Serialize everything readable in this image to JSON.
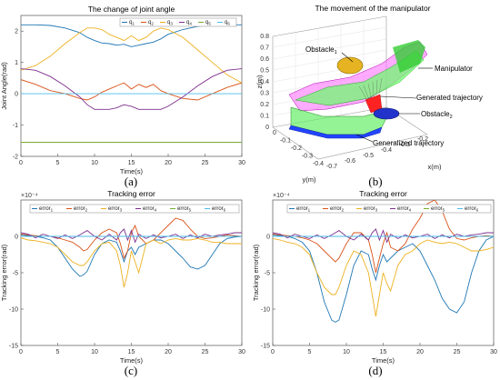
{
  "panels": {
    "a": {
      "caption": "(a)"
    },
    "b": {
      "caption": "(b)"
    },
    "c": {
      "caption": "(c)"
    },
    "d": {
      "caption": "(d)"
    }
  },
  "manipulator3d": {
    "title": "The movement of the manipulator",
    "zlabel": "z(m)",
    "ylabel": "y(m)",
    "xlabel": "x(m)",
    "z_ticks": [
      "0",
      "0.1",
      "0.2",
      "0.3",
      "0.4",
      "0.5",
      "0.6",
      "0.7",
      "0.8"
    ],
    "y_ticks": [
      "0",
      "-0.1",
      "-0.2",
      "-0.3",
      "-0.4"
    ],
    "x_ticks": [
      "-0.7",
      "-0.6",
      "-0.5",
      "-0.4",
      "-0.3",
      "-0.2"
    ],
    "annotations": {
      "obstacle1": "Obstacle",
      "obstacle1_sub": "1",
      "manipulator": "Manipulator",
      "generated": "Generated trajectory",
      "obstacle2": "Obstacle",
      "obstacle2_sub": "2",
      "generalized": "Generalized trajectory"
    },
    "colors": {
      "manipulator_top": "#ff44ff",
      "manipulator_side": "#66ff66",
      "green": "#33dd33",
      "blue": "#2244ff",
      "obstacle1": "#e0b020",
      "obstacle2": "#2233cc"
    }
  },
  "chart_data": [
    {
      "id": "a",
      "type": "line",
      "title": "The change of joint angle",
      "xlabel": "Time(s)",
      "ylabel": "Joint Angle(rad)",
      "xlim": [
        0,
        30
      ],
      "ylim": [
        -2,
        2.5
      ],
      "xticks": [
        0,
        5,
        10,
        15,
        20,
        25,
        30
      ],
      "yticks": [
        -2,
        -1,
        0,
        1,
        2
      ],
      "legend": {
        "placement": "top-right",
        "orientation": "horizontal"
      },
      "x": [
        0,
        2,
        4,
        6,
        8,
        9,
        10,
        11,
        12,
        13,
        14,
        15,
        16,
        17,
        18,
        19,
        20,
        22,
        24,
        26,
        28,
        30
      ],
      "series": [
        {
          "name": "q",
          "sub": "1",
          "color": "#1f77b4",
          "values": [
            2.2,
            2.2,
            2.18,
            2.1,
            1.95,
            1.8,
            1.7,
            1.62,
            1.6,
            1.55,
            1.58,
            1.5,
            1.55,
            1.6,
            1.65,
            1.75,
            1.9,
            2.05,
            2.15,
            2.2,
            2.2,
            2.2
          ]
        },
        {
          "name": "q",
          "sub": "2",
          "color": "#d95319",
          "values": [
            0.45,
            0.3,
            0.1,
            0.0,
            -0.15,
            -0.2,
            -0.1,
            0.05,
            0.15,
            0.25,
            0.35,
            0.15,
            0.3,
            0.2,
            0.3,
            0.1,
            0.0,
            -0.15,
            -0.2,
            0.0,
            0.2,
            0.35
          ]
        },
        {
          "name": "q",
          "sub": "3",
          "color": "#edb120",
          "values": [
            0.75,
            0.9,
            1.2,
            1.6,
            1.95,
            2.1,
            2.1,
            2.05,
            1.9,
            1.8,
            1.7,
            1.85,
            1.7,
            1.8,
            2.0,
            2.1,
            2.05,
            1.8,
            1.4,
            1.0,
            0.6,
            0.35
          ]
        },
        {
          "name": "q",
          "sub": "4",
          "color": "#7e2f8e",
          "values": [
            0.8,
            0.75,
            0.55,
            0.25,
            -0.1,
            -0.35,
            -0.5,
            -0.5,
            -0.5,
            -0.45,
            -0.35,
            -0.4,
            -0.5,
            -0.5,
            -0.5,
            -0.5,
            -0.4,
            -0.1,
            0.25,
            0.55,
            0.75,
            0.8
          ]
        },
        {
          "name": "q",
          "sub": "5",
          "color": "#77ac30",
          "values": [
            -1.55,
            -1.55,
            -1.55,
            -1.55,
            -1.55,
            -1.55,
            -1.55,
            -1.55,
            -1.55,
            -1.55,
            -1.55,
            -1.55,
            -1.55,
            -1.55,
            -1.55,
            -1.55,
            -1.55,
            -1.55,
            -1.55,
            -1.55,
            -1.55,
            -1.55
          ]
        },
        {
          "name": "q",
          "sub": "6",
          "color": "#4dbeee",
          "values": [
            0.0,
            0.0,
            0.0,
            0.0,
            0.0,
            0.0,
            0.0,
            0.0,
            0.0,
            0.0,
            0.0,
            0.0,
            0.0,
            0.0,
            0.0,
            0.0,
            0.0,
            0.0,
            0.0,
            0.0,
            0.0,
            0.0
          ]
        }
      ]
    },
    {
      "id": "c",
      "type": "line",
      "title": "Tracking error",
      "exponent": "×10⁻⁴",
      "xlabel": "Time(s)",
      "ylabel": "Tracking error(rad)",
      "xlim": [
        0,
        30
      ],
      "ylim": [
        -15,
        5
      ],
      "xticks": [
        0,
        5,
        10,
        15,
        20,
        25,
        30
      ],
      "yticks": [
        -15,
        -10,
        -5,
        0
      ],
      "legend": {
        "placement": "top",
        "orientation": "horizontal"
      },
      "x": [
        0,
        1,
        2,
        3,
        4,
        5,
        6,
        7,
        8,
        8.5,
        9,
        10,
        11,
        12,
        13,
        13.5,
        14,
        14.5,
        15,
        15.5,
        16,
        17,
        18,
        19,
        20,
        21,
        22,
        23,
        24,
        25,
        26,
        27,
        28,
        29,
        30
      ],
      "series": [
        {
          "name": "error",
          "sub": "1",
          "color": "#1f77b4",
          "values": [
            0.2,
            0.1,
            0,
            -0.2,
            -0.5,
            -1.5,
            -3,
            -4.5,
            -5.5,
            -5.3,
            -4.8,
            -2.5,
            -1,
            -0.5,
            -0.8,
            -2,
            -3.5,
            -2,
            -1.5,
            -2.5,
            -1.5,
            -1,
            -0.5,
            -0.5,
            -1,
            -2,
            -3,
            -4.2,
            -4.5,
            -4,
            -2.5,
            -1,
            -0.3,
            -0.1,
            0
          ]
        },
        {
          "name": "error",
          "sub": "2",
          "color": "#d95319",
          "values": [
            0.3,
            0.2,
            0.1,
            0,
            0,
            -0.2,
            -0.5,
            -0.8,
            -1.5,
            -2,
            -1.8,
            -0.5,
            0.5,
            1,
            0.5,
            -1,
            -3,
            -2,
            0.5,
            1.5,
            0,
            -1,
            -0.5,
            0.5,
            1.5,
            2.5,
            2.2,
            1,
            0,
            -0.3,
            -0.2,
            0,
            0.2,
            0.1,
            0
          ]
        },
        {
          "name": "error",
          "sub": "3",
          "color": "#edb120",
          "values": [
            -0.2,
            -0.5,
            -0.6,
            -0.8,
            -1,
            -1.5,
            -2.5,
            -3.5,
            -4,
            -4,
            -3.5,
            -2,
            -1,
            -0.8,
            -2,
            -4,
            -7,
            -5,
            -2,
            -3.5,
            -5,
            -1,
            -0.5,
            -1,
            -0.5,
            -0.3,
            -0.5,
            -0.5,
            -0.3,
            -0.5,
            -0.8,
            -0.8,
            -1,
            -1,
            -1
          ]
        },
        {
          "name": "error",
          "sub": "4",
          "color": "#7e2f8e",
          "values": [
            0.5,
            0.3,
            -0.2,
            0.3,
            0,
            -0.3,
            0.2,
            -0.3,
            0.2,
            0.5,
            0.8,
            0,
            -0.5,
            0.3,
            -0.5,
            0.5,
            1,
            -0.5,
            0.8,
            -0.8,
            0.3,
            -0.3,
            0.2,
            -0.2,
            0,
            0.3,
            -0.3,
            0.2,
            -0.2,
            0.3,
            0,
            0.2,
            0.3,
            0.5,
            0.5
          ]
        },
        {
          "name": "error",
          "sub": "5",
          "color": "#77ac30",
          "values": [
            0,
            0,
            0,
            0,
            0,
            0,
            0,
            0,
            0,
            0,
            0,
            0,
            0,
            0,
            0,
            0,
            0,
            0,
            0,
            0,
            0,
            0,
            0,
            0,
            0,
            0,
            0,
            0,
            0,
            0,
            0,
            0,
            0,
            0,
            0
          ]
        },
        {
          "name": "error",
          "sub": "6",
          "color": "#4dbeee",
          "values": [
            0,
            0,
            0,
            0,
            0,
            0,
            0,
            0,
            0,
            0,
            0,
            0,
            0,
            0,
            0,
            0,
            0,
            0,
            0,
            0,
            0,
            0,
            0,
            0,
            0,
            0,
            0,
            0,
            0,
            0,
            0,
            0,
            0,
            0,
            0
          ]
        }
      ]
    },
    {
      "id": "d",
      "type": "line",
      "title": "Tracking error",
      "exponent": "×10⁻⁴",
      "xlabel": "Time(s)",
      "ylabel": "Tracking error(rad)",
      "xlim": [
        0,
        30
      ],
      "ylim": [
        -15,
        5
      ],
      "xticks": [
        0,
        5,
        10,
        15,
        20,
        25,
        30
      ],
      "yticks": [
        -15,
        -10,
        -5,
        0
      ],
      "legend": {
        "placement": "top",
        "orientation": "horizontal"
      },
      "x": [
        0,
        1,
        2,
        3,
        4,
        5,
        6,
        7,
        8,
        8.5,
        9,
        10,
        11,
        12,
        13,
        13.5,
        14,
        14.5,
        15,
        15.5,
        16,
        17,
        18,
        19,
        20,
        21,
        22,
        23,
        24,
        25,
        26,
        27,
        28,
        29,
        30
      ],
      "series": [
        {
          "name": "error",
          "sub": "1",
          "color": "#1f77b4",
          "values": [
            0.2,
            0.1,
            0,
            -0.3,
            -0.8,
            -2,
            -5,
            -9,
            -11.5,
            -11.8,
            -11.5,
            -8,
            -4,
            -2,
            -2.5,
            -4.5,
            -6,
            -4,
            -2.5,
            -3.5,
            -3,
            -2,
            -1.5,
            -1,
            -2,
            -4,
            -6,
            -8.5,
            -10,
            -10.5,
            -9,
            -5,
            -2,
            -0.5,
            0
          ]
        },
        {
          "name": "error",
          "sub": "2",
          "color": "#d95319",
          "values": [
            0.3,
            0.2,
            0.1,
            0,
            -0.2,
            -0.5,
            -1,
            -2,
            -3,
            -3.5,
            -3,
            -1,
            0.5,
            0.5,
            -0.5,
            -2.5,
            -5,
            -3,
            -1,
            0.5,
            -1.5,
            -2,
            -1,
            1,
            2.5,
            4.5,
            5,
            3.5,
            1,
            -0.3,
            -0.5,
            -0.2,
            0,
            0.1,
            0
          ]
        },
        {
          "name": "error",
          "sub": "3",
          "color": "#edb120",
          "values": [
            -0.3,
            -0.5,
            -0.8,
            -1,
            -1.5,
            -2.5,
            -5,
            -7,
            -8,
            -8,
            -7,
            -4,
            -2,
            -2.5,
            -5,
            -8,
            -11,
            -8,
            -5,
            -6.5,
            -7.5,
            -4,
            -2.5,
            -2,
            -1,
            -0.5,
            -0.8,
            -1,
            -0.8,
            -1,
            -1.5,
            -2,
            -2,
            -1.8,
            -1.5
          ]
        },
        {
          "name": "error",
          "sub": "4",
          "color": "#7e2f8e",
          "values": [
            0.5,
            0.3,
            -0.2,
            0.3,
            0,
            -0.3,
            0.2,
            -0.3,
            0.2,
            0.5,
            0.8,
            0,
            -0.5,
            0.3,
            -0.5,
            0.5,
            1,
            -0.5,
            0.8,
            -0.8,
            0.3,
            -0.3,
            0.2,
            -0.2,
            0,
            0.3,
            -0.3,
            0.2,
            -0.2,
            0.3,
            0,
            0.2,
            0.3,
            0.5,
            0.5
          ]
        },
        {
          "name": "error",
          "sub": "5",
          "color": "#77ac30",
          "values": [
            0,
            0,
            0,
            0,
            0,
            0,
            0,
            0,
            0,
            0,
            0,
            0,
            0,
            0,
            0,
            0,
            0,
            0,
            0,
            0,
            0,
            0,
            0,
            0,
            0,
            0,
            0,
            0,
            0,
            0,
            0,
            0,
            0,
            0,
            0
          ]
        },
        {
          "name": "error",
          "sub": "6",
          "color": "#4dbeee",
          "values": [
            0,
            0,
            0,
            0,
            0,
            0,
            0,
            0,
            0,
            0,
            0,
            0,
            0,
            0,
            0,
            0,
            0,
            0,
            0,
            0,
            0,
            0,
            0,
            0,
            0,
            0,
            0,
            0,
            0,
            0,
            0,
            0,
            0,
            0,
            0
          ]
        }
      ]
    }
  ]
}
